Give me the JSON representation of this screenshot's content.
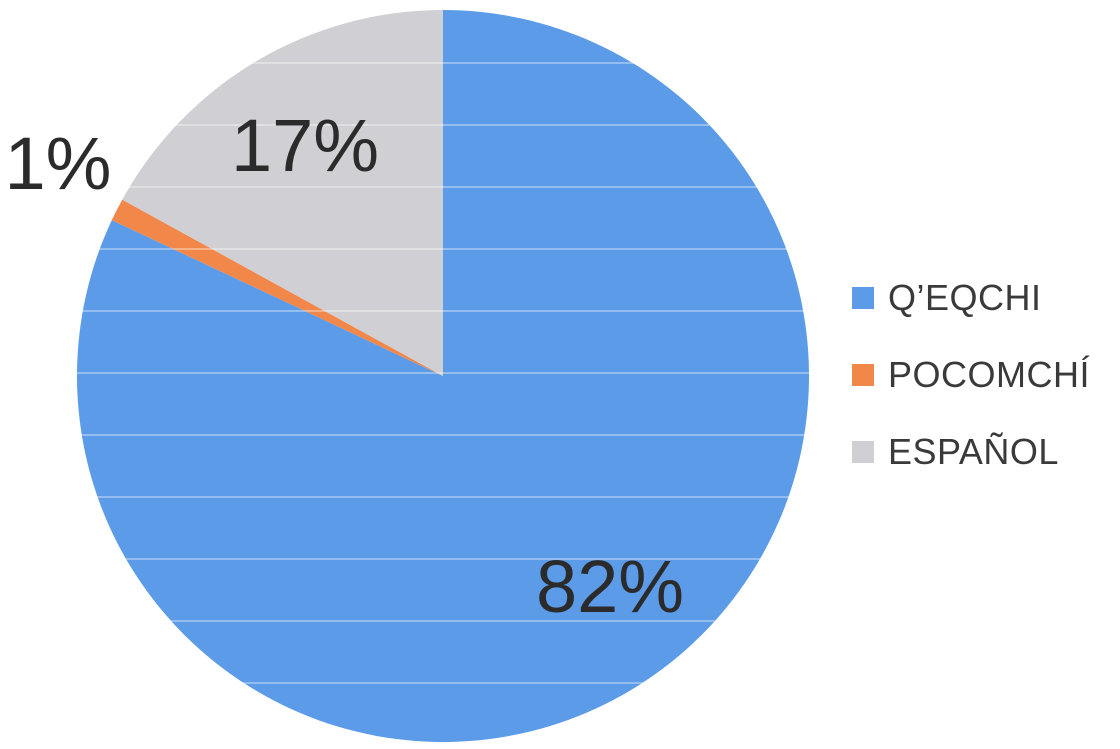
{
  "chart_data": {
    "type": "pie",
    "categories": [
      "Q’EQCHI",
      "POCOMCHÍ",
      "ESPAÑOL"
    ],
    "values": [
      82,
      1,
      17
    ],
    "data_labels": [
      "82%",
      "1%",
      "17%"
    ],
    "colors": [
      "#5b9be8",
      "#f2874a",
      "#cfcfd4"
    ],
    "title": "",
    "legend_position": "right",
    "start_angle": "12 o'clock, clockwise"
  }
}
